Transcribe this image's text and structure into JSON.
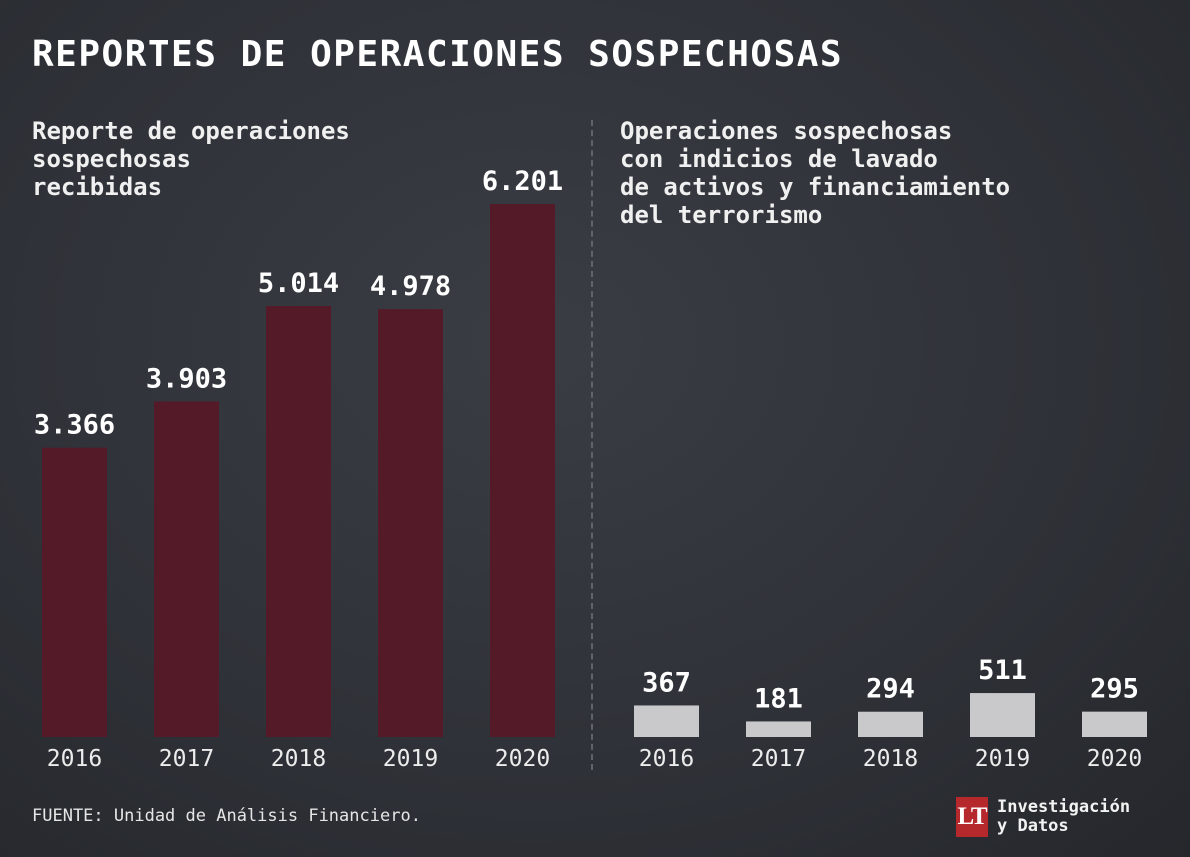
{
  "title": "REPORTES DE OPERACIONES SOSPECHOSAS",
  "colors": {
    "left_bar": "#551a28",
    "right_bar": "#c9c9cc",
    "label": "#ffffff",
    "tick": "#ececec"
  },
  "chart_data": [
    {
      "type": "bar",
      "title": "Reporte de operaciones\nsospechosas\nrecibidas",
      "categories": [
        "2016",
        "2017",
        "2018",
        "2019",
        "2020"
      ],
      "values": [
        3366,
        3903,
        5014,
        4978,
        6201
      ],
      "value_labels": [
        "3.366",
        "3.903",
        "5.014",
        "4.978",
        "6.201"
      ],
      "ylim": [
        0,
        6201
      ],
      "grid": false,
      "legend": "none"
    },
    {
      "type": "bar",
      "title": "Operaciones sospechosas\ncon indicios de lavado\nde activos y financiamiento\ndel terrorismo",
      "categories": [
        "2016",
        "2017",
        "2018",
        "2019",
        "2020"
      ],
      "values": [
        367,
        181,
        294,
        511,
        295
      ],
      "value_labels": [
        "367",
        "181",
        "294",
        "511",
        "295"
      ],
      "ylim": [
        0,
        6201
      ],
      "grid": false,
      "legend": "none"
    }
  ],
  "footer": {
    "source": "FUENTE: Unidad de Análisis Financiero.",
    "logo_mark": "LT",
    "logo_line1": "Investigación",
    "logo_line2": "y Datos"
  }
}
